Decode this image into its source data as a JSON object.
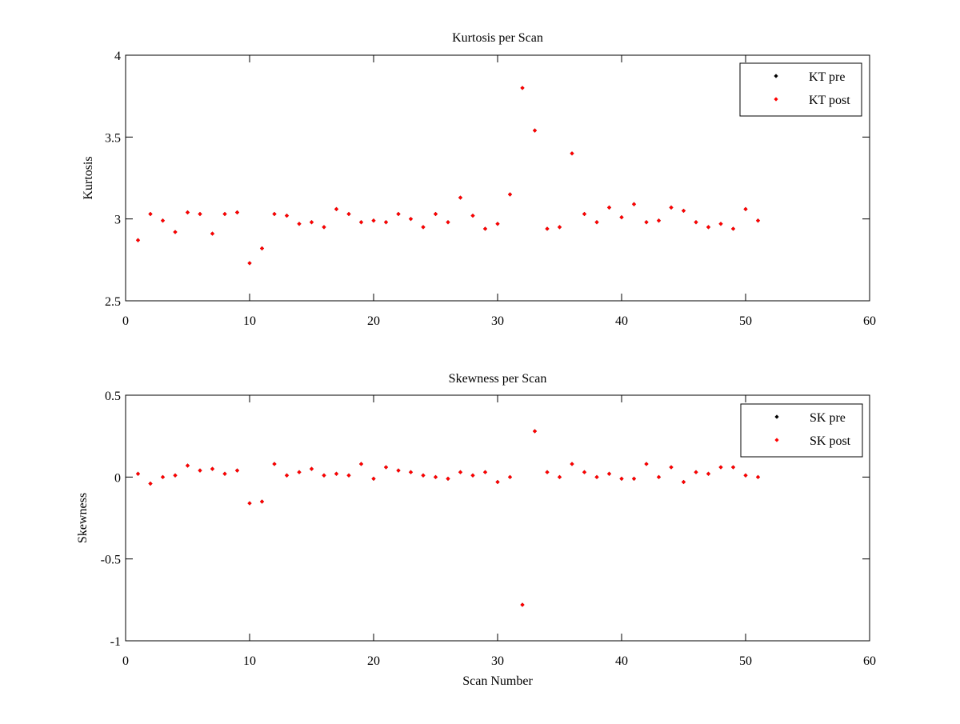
{
  "chart_data": [
    {
      "type": "scatter",
      "title": "Kurtosis per Scan",
      "xlabel": "",
      "ylabel": "Kurtosis",
      "xlim": [
        0,
        60
      ],
      "ylim": [
        2.5,
        4
      ],
      "xticks": [
        0,
        10,
        20,
        30,
        40,
        50,
        60
      ],
      "yticks": [
        2.5,
        3,
        3.5,
        4
      ],
      "xtick_labels": [
        "0",
        "10",
        "20",
        "30",
        "40",
        "50",
        "60"
      ],
      "ytick_labels": [
        "2.5",
        "3",
        "3.5",
        "4"
      ],
      "legend_position": "top-right",
      "x": [
        1,
        2,
        3,
        4,
        5,
        6,
        7,
        8,
        9,
        10,
        11,
        12,
        13,
        14,
        15,
        16,
        17,
        18,
        19,
        20,
        21,
        22,
        23,
        24,
        25,
        26,
        27,
        28,
        29,
        30,
        31,
        32,
        33,
        34,
        35,
        36,
        37,
        38,
        39,
        40,
        41,
        42,
        43,
        44,
        45,
        46,
        47,
        48,
        49,
        50,
        51
      ],
      "series": [
        {
          "name": "KT pre",
          "color": "#000000",
          "values": [
            2.87,
            3.03,
            2.99,
            2.92,
            3.04,
            3.03,
            2.91,
            3.03,
            3.04,
            2.73,
            2.82,
            3.03,
            3.02,
            2.97,
            2.98,
            2.95,
            3.06,
            3.03,
            2.98,
            2.99,
            2.98,
            3.03,
            3.0,
            2.95,
            3.03,
            2.98,
            3.13,
            3.02,
            2.94,
            2.97,
            3.15,
            3.8,
            3.54,
            2.94,
            2.95,
            3.4,
            3.03,
            2.98,
            3.07,
            3.01,
            3.09,
            2.98,
            2.99,
            3.07,
            3.05,
            2.98,
            2.95,
            2.97,
            2.94,
            3.06,
            2.99
          ]
        },
        {
          "name": "KT post",
          "color": "#ff0000",
          "values": [
            2.87,
            3.03,
            2.99,
            2.92,
            3.04,
            3.03,
            2.91,
            3.03,
            3.04,
            2.73,
            2.82,
            3.03,
            3.02,
            2.97,
            2.98,
            2.95,
            3.06,
            3.03,
            2.98,
            2.99,
            2.98,
            3.03,
            3.0,
            2.95,
            3.03,
            2.98,
            3.13,
            3.02,
            2.94,
            2.97,
            3.15,
            3.8,
            3.54,
            2.94,
            2.95,
            3.4,
            3.03,
            2.98,
            3.07,
            3.01,
            3.09,
            2.98,
            2.99,
            3.07,
            3.05,
            2.98,
            2.95,
            2.97,
            2.94,
            3.06,
            2.99
          ]
        }
      ]
    },
    {
      "type": "scatter",
      "title": "Skewness per Scan",
      "xlabel": "Scan Number",
      "ylabel": "Skewness",
      "xlim": [
        0,
        60
      ],
      "ylim": [
        -1,
        0.5
      ],
      "xticks": [
        0,
        10,
        20,
        30,
        40,
        50,
        60
      ],
      "yticks": [
        -1,
        -0.5,
        0,
        0.5
      ],
      "xtick_labels": [
        "0",
        "10",
        "20",
        "30",
        "40",
        "50",
        "60"
      ],
      "ytick_labels": [
        "-1",
        "-0.5",
        "0",
        "0.5"
      ],
      "legend_position": "top-right",
      "x": [
        1,
        2,
        3,
        4,
        5,
        6,
        7,
        8,
        9,
        10,
        11,
        12,
        13,
        14,
        15,
        16,
        17,
        18,
        19,
        20,
        21,
        22,
        23,
        24,
        25,
        26,
        27,
        28,
        29,
        30,
        31,
        32,
        33,
        34,
        35,
        36,
        37,
        38,
        39,
        40,
        41,
        42,
        43,
        44,
        45,
        46,
        47,
        48,
        49,
        50,
        51
      ],
      "series": [
        {
          "name": "SK pre",
          "color": "#000000",
          "values": [
            0.02,
            -0.04,
            0.0,
            0.01,
            0.07,
            0.04,
            0.05,
            0.02,
            0.04,
            -0.16,
            -0.15,
            0.08,
            0.01,
            0.03,
            0.05,
            0.01,
            0.02,
            0.01,
            0.08,
            -0.01,
            0.06,
            0.04,
            0.03,
            0.01,
            0.0,
            -0.01,
            0.03,
            0.01,
            0.03,
            -0.03,
            0.0,
            -0.78,
            0.28,
            0.03,
            0.0,
            0.08,
            0.03,
            0.0,
            0.02,
            -0.01,
            -0.01,
            0.08,
            0.0,
            0.06,
            -0.03,
            0.03,
            0.02,
            0.06,
            0.06,
            0.01,
            0.0
          ]
        },
        {
          "name": "SK post",
          "color": "#ff0000",
          "values": [
            0.02,
            -0.04,
            0.0,
            0.01,
            0.07,
            0.04,
            0.05,
            0.02,
            0.04,
            -0.16,
            -0.15,
            0.08,
            0.01,
            0.03,
            0.05,
            0.01,
            0.02,
            0.01,
            0.08,
            -0.01,
            0.06,
            0.04,
            0.03,
            0.01,
            0.0,
            -0.01,
            0.03,
            0.01,
            0.03,
            -0.03,
            0.0,
            -0.78,
            0.28,
            0.03,
            0.0,
            0.08,
            0.03,
            0.0,
            0.02,
            -0.01,
            -0.01,
            0.08,
            0.0,
            0.06,
            -0.03,
            0.03,
            0.02,
            0.06,
            0.06,
            0.01,
            0.0
          ]
        }
      ]
    }
  ]
}
